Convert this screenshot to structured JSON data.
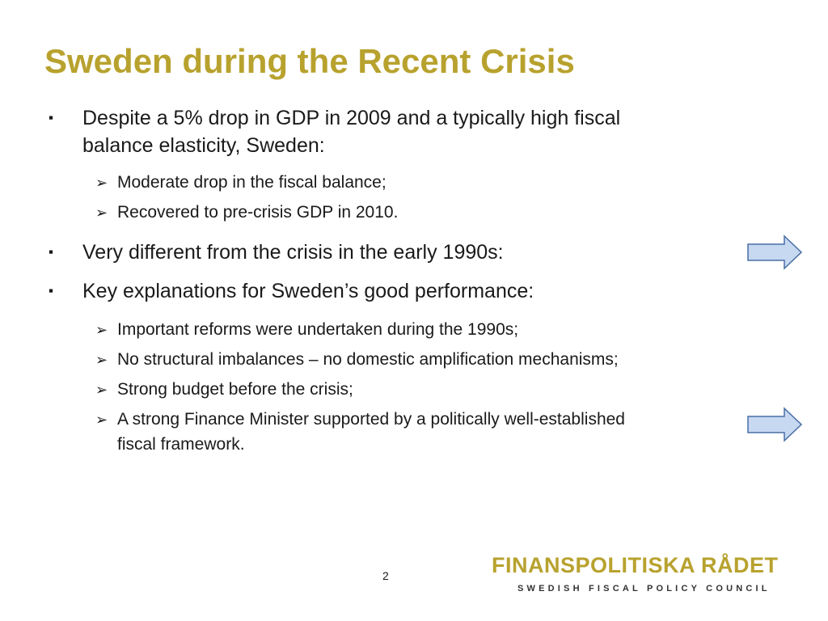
{
  "slide": {
    "title": "Sweden during the Recent Crisis",
    "page_number": "2"
  },
  "bullets": [
    {
      "marker": "▪",
      "lines": [
        "Despite a 5% drop in GDP in 2009 and a typically high fiscal",
        "balance elasticity, Sweden:"
      ],
      "sub": [
        {
          "marker": "➢",
          "lines": [
            "Moderate drop in the fiscal balance;"
          ]
        },
        {
          "marker": "➢",
          "lines": [
            "Recovered to pre-crisis GDP in 2010."
          ]
        }
      ]
    },
    {
      "marker": "▪",
      "lines": [
        "Very different from the crisis in the early 1990s:"
      ],
      "sub": []
    },
    {
      "marker": "▪",
      "lines": [
        "Key explanations for Sweden’s good performance:"
      ],
      "sub": [
        {
          "marker": "➢",
          "lines": [
            "Important reforms were undertaken during the 1990s;"
          ]
        },
        {
          "marker": "➢",
          "lines": [
            "No structural imbalances – no domestic amplification mechanisms;"
          ]
        },
        {
          "marker": "➢",
          "lines": [
            "Strong budget before the crisis;"
          ]
        },
        {
          "marker": "➢",
          "lines": [
            "A strong Finance Minister supported by a politically well-established",
            "fiscal framework."
          ]
        }
      ]
    }
  ],
  "arrows": [
    {
      "icon": "right-arrow-icon",
      "fill": "#c6d9f1",
      "stroke": "#4a6fa5"
    },
    {
      "icon": "right-arrow-icon",
      "fill": "#c6d9f1",
      "stroke": "#4a6fa5"
    }
  ],
  "logo": {
    "name": "FINANSPOLITISKA RÅDET",
    "subtitle": "SWEDISH FISCAL POLICY COUNCIL",
    "color": "#b8a22e"
  }
}
